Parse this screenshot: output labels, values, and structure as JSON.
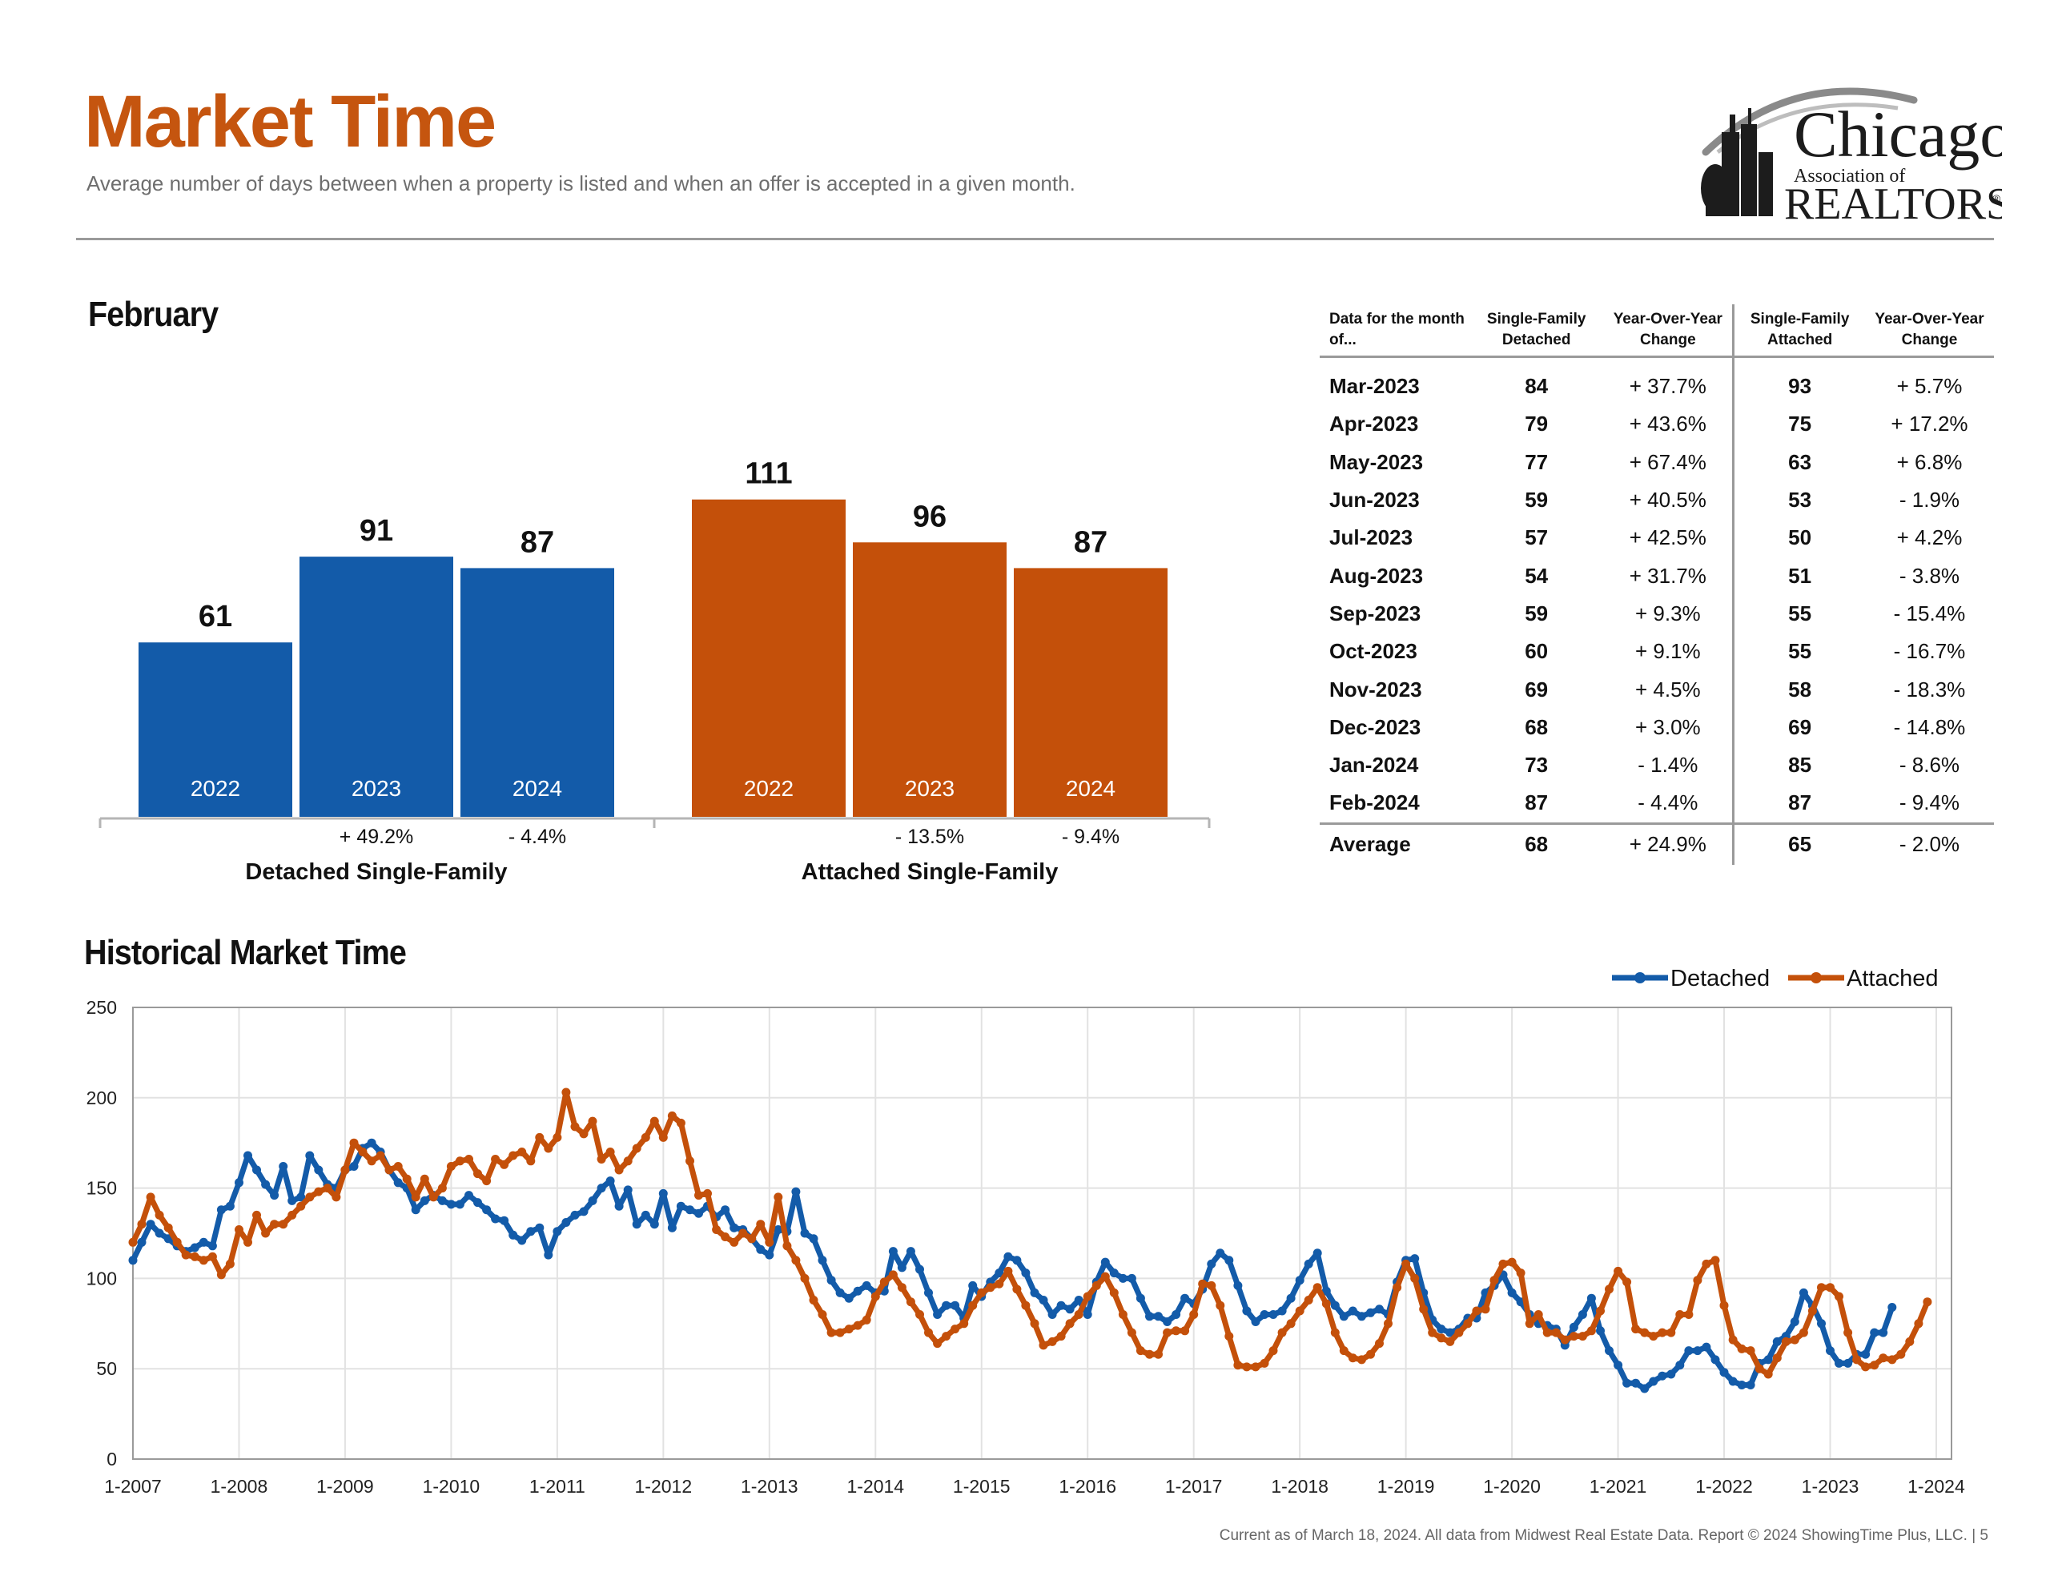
{
  "header": {
    "title": "Market Time",
    "subtitle": "Average number of days between when a property is listed and when an offer is accepted in a given month.",
    "logo": {
      "text_line1": "Chicago",
      "text_line2": "Association of",
      "text_line3": "REALTORS",
      "mark": "®"
    }
  },
  "february": {
    "title": "February"
  },
  "historical": {
    "title": "Historical Market Time"
  },
  "table": {
    "headers": [
      "Data for the month of...",
      "Single-Family Detached",
      "Year-Over-Year Change",
      "Single-Family Attached",
      "Year-Over-Year Change"
    ],
    "rows": [
      {
        "month": "Mar-2023",
        "detached": "84",
        "det_change": "+ 37.7%",
        "attached": "93",
        "att_change": "+ 5.7%"
      },
      {
        "month": "Apr-2023",
        "detached": "79",
        "det_change": "+ 43.6%",
        "attached": "75",
        "att_change": "+ 17.2%"
      },
      {
        "month": "May-2023",
        "detached": "77",
        "det_change": "+ 67.4%",
        "attached": "63",
        "att_change": "+ 6.8%"
      },
      {
        "month": "Jun-2023",
        "detached": "59",
        "det_change": "+ 40.5%",
        "attached": "53",
        "att_change": "- 1.9%"
      },
      {
        "month": "Jul-2023",
        "detached": "57",
        "det_change": "+ 42.5%",
        "attached": "50",
        "att_change": "+ 4.2%"
      },
      {
        "month": "Aug-2023",
        "detached": "54",
        "det_change": "+ 31.7%",
        "attached": "51",
        "att_change": "- 3.8%"
      },
      {
        "month": "Sep-2023",
        "detached": "59",
        "det_change": "+ 9.3%",
        "attached": "55",
        "att_change": "- 15.4%"
      },
      {
        "month": "Oct-2023",
        "detached": "60",
        "det_change": "+ 9.1%",
        "attached": "55",
        "att_change": "- 16.7%"
      },
      {
        "month": "Nov-2023",
        "detached": "69",
        "det_change": "+ 4.5%",
        "attached": "58",
        "att_change": "- 18.3%"
      },
      {
        "month": "Dec-2023",
        "detached": "68",
        "det_change": "+ 3.0%",
        "attached": "69",
        "att_change": "- 14.8%"
      },
      {
        "month": "Jan-2024",
        "detached": "73",
        "det_change": "- 1.4%",
        "attached": "85",
        "att_change": "- 8.6%"
      },
      {
        "month": "Feb-2024",
        "detached": "87",
        "det_change": "- 4.4%",
        "attached": "87",
        "att_change": "- 9.4%"
      }
    ],
    "average": {
      "month": "Average",
      "detached": "68",
      "det_change": "+ 24.9%",
      "attached": "65",
      "att_change": "- 2.0%"
    }
  },
  "footer": "Current as of March 18, 2024.  All data from Midwest Real Estate Data. Report © 2024 ShowingTime Plus, LLC.  |  5",
  "colors": {
    "accent": "#c5550f",
    "detached": "#135ba9",
    "attached": "#c4500a"
  },
  "chart_data": [
    {
      "type": "bar",
      "title": "February",
      "groups": [
        {
          "name": "Detached Single-Family",
          "color": "#135ba9",
          "bars": [
            {
              "year": "2022",
              "value": 61,
              "change": ""
            },
            {
              "year": "2023",
              "value": 91,
              "change": "+ 49.2%"
            },
            {
              "year": "2024",
              "value": 87,
              "change": "- 4.4%"
            }
          ]
        },
        {
          "name": "Attached Single-Family",
          "color": "#c4500a",
          "bars": [
            {
              "year": "2022",
              "value": 111,
              "change": ""
            },
            {
              "year": "2023",
              "value": 96,
              "change": "- 13.5%"
            },
            {
              "year": "2024",
              "value": 87,
              "change": "- 9.4%"
            }
          ]
        }
      ]
    },
    {
      "type": "line",
      "title": "Historical Market Time",
      "start": "1-2007",
      "frequency": "monthly",
      "ylim": [
        0,
        250
      ],
      "yticks": [
        0,
        50,
        100,
        150,
        200,
        250
      ],
      "xticks": [
        "1-2007",
        "1-2008",
        "1-2009",
        "1-2010",
        "1-2011",
        "1-2012",
        "1-2013",
        "1-2014",
        "1-2015",
        "1-2016",
        "1-2017",
        "1-2018",
        "1-2019",
        "1-2020",
        "1-2021",
        "1-2022",
        "1-2023",
        "1-2024"
      ],
      "grid": true,
      "legend": "top-right",
      "series": [
        {
          "name": "Detached",
          "color": "#135ba9",
          "values": [
            110,
            120,
            130,
            125,
            122,
            118,
            115,
            117,
            120,
            118,
            138,
            140,
            153,
            168,
            160,
            152,
            146,
            162,
            143,
            145,
            168,
            160,
            152,
            150,
            160,
            162,
            172,
            175,
            170,
            160,
            153,
            150,
            138,
            143,
            146,
            143,
            141,
            141,
            146,
            142,
            138,
            133,
            132,
            124,
            121,
            126,
            128,
            113,
            126,
            131,
            135,
            137,
            143,
            150,
            154,
            140,
            149,
            130,
            135,
            130,
            147,
            128,
            140,
            138,
            136,
            140,
            134,
            138,
            128,
            127,
            122,
            116,
            113,
            127,
            126,
            148,
            125,
            122,
            110,
            99,
            92,
            89,
            93,
            96,
            92,
            93,
            115,
            106,
            115,
            105,
            92,
            80,
            85,
            85,
            78,
            96,
            90,
            98,
            103,
            112,
            110,
            103,
            92,
            88,
            80,
            85,
            83,
            88,
            80,
            98,
            109,
            103,
            100,
            100,
            89,
            79,
            79,
            76,
            80,
            89,
            86,
            94,
            108,
            114,
            110,
            96,
            82,
            76,
            80,
            80,
            82,
            89,
            99,
            108,
            114,
            93,
            85,
            79,
            82,
            79,
            81,
            83,
            80,
            98,
            110,
            111,
            92,
            77,
            72,
            70,
            72,
            78,
            78,
            92,
            96,
            102,
            92,
            87,
            80,
            75,
            74,
            72,
            63,
            73,
            80,
            89,
            71,
            60,
            52,
            42,
            42,
            39,
            43,
            46,
            47,
            52,
            60,
            60,
            62,
            55,
            48,
            43,
            41,
            41,
            53,
            55,
            65,
            68,
            76,
            92,
            85,
            75,
            60,
            53,
            53,
            58,
            58,
            70,
            70,
            84
          ]
        },
        {
          "name": "Attached",
          "color": "#c4500a",
          "values": [
            120,
            130,
            145,
            135,
            128,
            120,
            113,
            112,
            110,
            112,
            102,
            108,
            127,
            120,
            135,
            125,
            130,
            130,
            135,
            140,
            145,
            148,
            150,
            145,
            160,
            175,
            170,
            165,
            168,
            160,
            162,
            155,
            145,
            155,
            145,
            150,
            162,
            165,
            166,
            158,
            154,
            166,
            163,
            168,
            170,
            165,
            178,
            172,
            178,
            203,
            184,
            180,
            187,
            166,
            170,
            160,
            165,
            172,
            178,
            187,
            178,
            190,
            186,
            165,
            146,
            147,
            127,
            123,
            120,
            125,
            122,
            130,
            120,
            145,
            118,
            110,
            100,
            88,
            80,
            70,
            70,
            72,
            74,
            77,
            90,
            98,
            102,
            95,
            87,
            80,
            70,
            64,
            68,
            72,
            75,
            85,
            92,
            95,
            97,
            104,
            94,
            85,
            75,
            63,
            65,
            68,
            75,
            80,
            90,
            96,
            101,
            92,
            80,
            70,
            60,
            58,
            58,
            70,
            71,
            71,
            80,
            97,
            96,
            85,
            68,
            52,
            51,
            51,
            53,
            60,
            70,
            75,
            82,
            88,
            95,
            86,
            70,
            60,
            56,
            55,
            58,
            64,
            75,
            95,
            108,
            100,
            83,
            70,
            67,
            65,
            70,
            75,
            82,
            83,
            99,
            108,
            109,
            103,
            75,
            80,
            70,
            70,
            66,
            68,
            68,
            71,
            82,
            94,
            104,
            98,
            72,
            70,
            68,
            70,
            70,
            80,
            80,
            99,
            108,
            110,
            85,
            66,
            61,
            60,
            50,
            47,
            56,
            65,
            66,
            70,
            82,
            95,
            95,
            90,
            70,
            55,
            51,
            52,
            56,
            55,
            58,
            65,
            75,
            87
          ]
        }
      ]
    }
  ]
}
